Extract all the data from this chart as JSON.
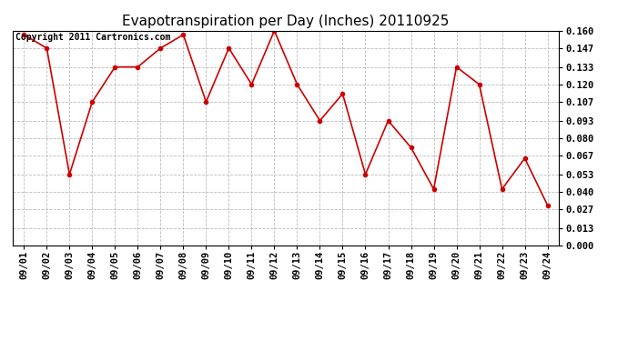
{
  "title": "Evapotranspiration per Day (Inches) 20110925",
  "copyright": "Copyright 2011 Cartronics.com",
  "dates": [
    "09/01",
    "09/02",
    "09/03",
    "09/04",
    "09/05",
    "09/06",
    "09/07",
    "09/08",
    "09/09",
    "09/10",
    "09/11",
    "09/12",
    "09/13",
    "09/14",
    "09/15",
    "09/16",
    "09/17",
    "09/18",
    "09/19",
    "09/20",
    "09/21",
    "09/22",
    "09/23",
    "09/24"
  ],
  "values": [
    0.157,
    0.147,
    0.053,
    0.107,
    0.133,
    0.133,
    0.147,
    0.157,
    0.107,
    0.147,
    0.12,
    0.16,
    0.12,
    0.093,
    0.113,
    0.053,
    0.093,
    0.073,
    0.042,
    0.133,
    0.12,
    0.042,
    0.065,
    0.03
  ],
  "line_color": "#cc0000",
  "marker": "o",
  "marker_size": 3,
  "ylim": [
    0.0,
    0.16
  ],
  "yticks": [
    0.0,
    0.013,
    0.027,
    0.04,
    0.053,
    0.067,
    0.08,
    0.093,
    0.107,
    0.12,
    0.133,
    0.147,
    0.16
  ],
  "grid_color": "#bbbbbb",
  "bg_color": "#ffffff",
  "title_fontsize": 11,
  "copyright_fontsize": 7,
  "tick_fontsize": 7.5,
  "figsize": [
    6.9,
    3.75
  ],
  "dpi": 100
}
